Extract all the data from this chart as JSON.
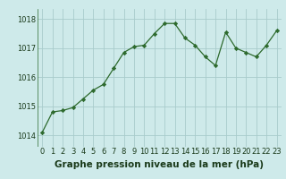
{
  "x": [
    0,
    1,
    2,
    3,
    4,
    5,
    6,
    7,
    8,
    9,
    10,
    11,
    12,
    13,
    14,
    15,
    16,
    17,
    18,
    19,
    20,
    21,
    22,
    23
  ],
  "y": [
    1014.1,
    1014.8,
    1014.85,
    1014.95,
    1015.25,
    1015.55,
    1015.75,
    1016.3,
    1016.85,
    1017.05,
    1017.1,
    1017.5,
    1017.85,
    1017.85,
    1017.35,
    1017.1,
    1016.7,
    1016.4,
    1017.55,
    1017.0,
    1016.85,
    1016.7,
    1017.1,
    1017.6
  ],
  "line_color": "#2d6a2d",
  "marker": "D",
  "marker_size": 2.2,
  "bg_color": "#ceeaea",
  "grid_color": "#a8cccc",
  "xlabel": "Graphe pression niveau de la mer (hPa)",
  "xlabel_fontsize": 7.5,
  "ylabel_ticks": [
    1014,
    1015,
    1016,
    1017,
    1018
  ],
  "xlim": [
    -0.5,
    23.5
  ],
  "ylim": [
    1013.6,
    1018.35
  ],
  "xtick_labels": [
    "0",
    "1",
    "2",
    "3",
    "4",
    "5",
    "6",
    "7",
    "8",
    "9",
    "10",
    "11",
    "12",
    "13",
    "14",
    "15",
    "16",
    "17",
    "18",
    "19",
    "20",
    "21",
    "22",
    "23"
  ],
  "tick_fontsize": 6.0,
  "line_width": 0.9
}
